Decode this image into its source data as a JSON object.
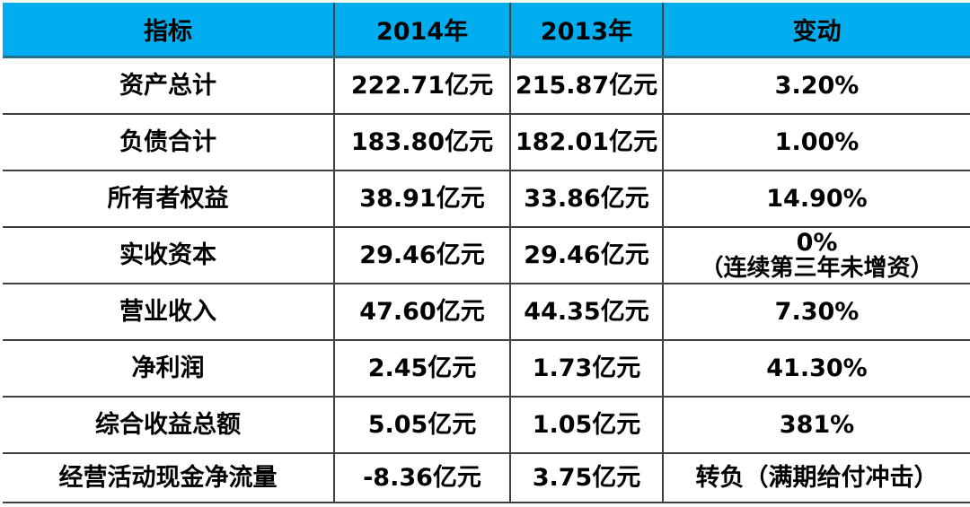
{
  "colors": {
    "header_background": "#00AEEF",
    "header_underline": "#21708F",
    "grid_line": "#3F3F3F",
    "text": "#000000",
    "page_background": "#FFFFFF"
  },
  "chart_data": {
    "type": "table",
    "columns": [
      "指标",
      "2014年",
      "2013年",
      "变动"
    ],
    "rows": [
      {
        "indicator": "资产总计",
        "y2014": "222.71亿元",
        "y2013": "215.87亿元",
        "change": "3.20%"
      },
      {
        "indicator": "负债合计",
        "y2014": "183.80亿元",
        "y2013": "182.01亿元",
        "change": "1.00%"
      },
      {
        "indicator": "所有者权益",
        "y2014": "38.91亿元",
        "y2013": "33.86亿元",
        "change": "14.90%"
      },
      {
        "indicator": "实收资本",
        "y2014": "29.46亿元",
        "y2013": "29.46亿元",
        "change": "0%",
        "change_note": "（连续第三年未增资）"
      },
      {
        "indicator": "营业收入",
        "y2014": "47.60亿元",
        "y2013": "44.35亿元",
        "change": "7.30%"
      },
      {
        "indicator": "净利润",
        "y2014": "2.45亿元",
        "y2013": "1.73亿元",
        "change": "41.30%"
      },
      {
        "indicator": "综合收益总额",
        "y2014": "5.05亿元",
        "y2013": "1.05亿元",
        "change": "381%"
      },
      {
        "indicator": "经营活动现金净流量",
        "y2014": "-8.36亿元",
        "y2013": "3.75亿元",
        "change": "转负（满期给付冲击）"
      }
    ]
  }
}
